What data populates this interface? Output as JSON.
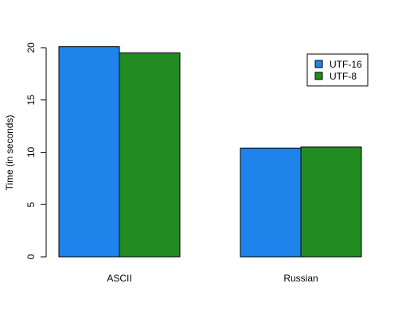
{
  "chart_data": {
    "type": "bar",
    "title": "",
    "xlabel": "",
    "ylabel": "Time (in seconds)",
    "categories": [
      "ASCII",
      "Russian"
    ],
    "series": [
      {
        "name": "UTF-16",
        "color": "#1e84eb",
        "values": [
          20.1,
          10.4
        ]
      },
      {
        "name": "UTF-8",
        "color": "#228b22",
        "values": [
          19.5,
          10.5
        ]
      }
    ],
    "ylim": [
      0,
      20
    ],
    "yticks": [
      0,
      5,
      10,
      15,
      20
    ],
    "grid": false,
    "legend": "top-right"
  }
}
